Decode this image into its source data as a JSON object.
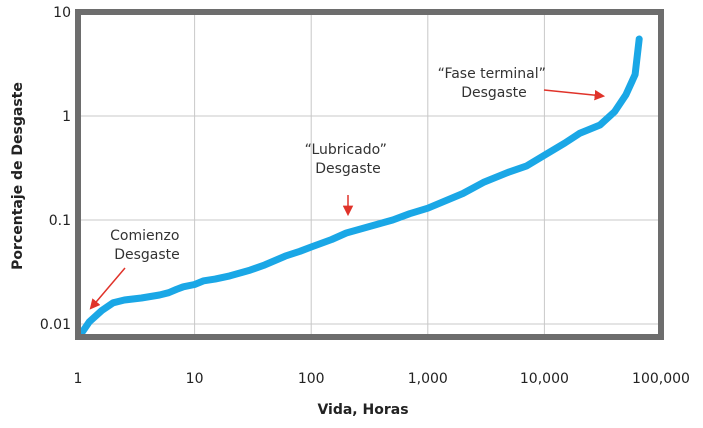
{
  "chart_data": {
    "type": "line",
    "xlabel": "Vida, Horas",
    "ylabel": "Porcentaje de Desgaste",
    "x_scale": "log",
    "y_scale": "log",
    "xlim": [
      1,
      100000
    ],
    "ylim": [
      0.0075,
      10
    ],
    "grid": true,
    "x_ticks": [
      {
        "value": 1,
        "label": "1"
      },
      {
        "value": 10,
        "label": "10"
      },
      {
        "value": 100,
        "label": "100"
      },
      {
        "value": 1000,
        "label": "1,000"
      },
      {
        "value": 10000,
        "label": "10,000"
      },
      {
        "value": 100000,
        "label": "100,000"
      }
    ],
    "y_ticks": [
      {
        "value": 0.01,
        "label": "0.01"
      },
      {
        "value": 0.1,
        "label": "0.1"
      },
      {
        "value": 1,
        "label": "1"
      },
      {
        "value": 10,
        "label": "10"
      }
    ],
    "series": [
      {
        "color": "#1aa7e6",
        "x": [
          1.05,
          1.1,
          1.25,
          1.6,
          2,
          2.5,
          3.5,
          5,
          6,
          7,
          8,
          10,
          12,
          15,
          20,
          30,
          40,
          60,
          80,
          100,
          150,
          200,
          300,
          500,
          700,
          1000,
          2000,
          3000,
          5000,
          7000,
          10000,
          15000,
          20000,
          30000,
          40000,
          50000,
          60000,
          65000
        ],
        "y": [
          0.0082,
          0.0085,
          0.0105,
          0.0135,
          0.016,
          0.017,
          0.0178,
          0.019,
          0.02,
          0.0215,
          0.0228,
          0.024,
          0.026,
          0.027,
          0.029,
          0.033,
          0.037,
          0.045,
          0.05,
          0.055,
          0.065,
          0.075,
          0.085,
          0.1,
          0.115,
          0.13,
          0.18,
          0.23,
          0.29,
          0.33,
          0.42,
          0.55,
          0.68,
          0.82,
          1.1,
          1.6,
          2.5,
          5.5
        ]
      }
    ],
    "annotations": [
      {
        "lines": [
          "Comienzo",
          "Desgaste"
        ]
      },
      {
        "lines": [
          "“Lubricado”",
          "Desgaste"
        ]
      },
      {
        "lines": [
          "“Fase terminal”",
          "Desgaste"
        ]
      }
    ]
  }
}
